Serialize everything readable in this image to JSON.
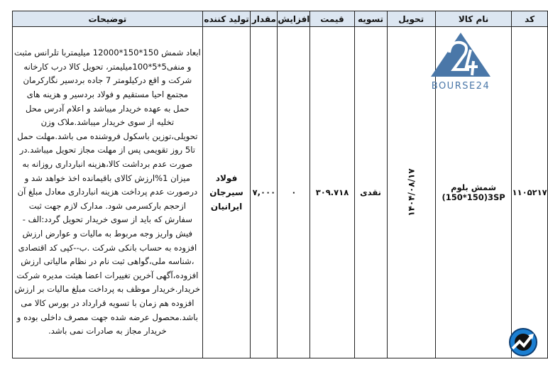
{
  "headers": {
    "code": "کد",
    "product": "نام کالا",
    "delivery": "تحویل",
    "settlement": "تسویه",
    "price": "قیمت",
    "increase": "افزایش",
    "quantity": "مقدار",
    "producer": "تولید کننده",
    "description": "توضیحات"
  },
  "row": {
    "code": "۱۱۰۵۲۱۷",
    "product_line1": "شمش بلوم",
    "product_line2": "(150*150)3SP",
    "delivery": "۱۴۰۴/۰۸/۱۷",
    "settlement": "نقدی",
    "price": "۳۰۹.۷۱۸",
    "increase": "۰",
    "quantity": "۷,۰۰۰",
    "producer_lines": [
      "فولاد",
      "سیرجان",
      "ایرانیان"
    ],
    "description_lines": [
      "ابعاد شمش 150*150*12000 میلیمتربا تلرانس مثبت",
      "و منفی5*5*100میلیمتر، تحویل کالا درب کارخانه",
      "شرکت و اقع درکیلومتر 7 جاده بردسیر نگارکرمان",
      "مجتمع احیا مستقیم و فولاد بردسیر و هزینه های",
      "حمل به عهده خریدار میباشد و اعلام آدرس محل",
      "تخلیه از سوی خریدار میباشد.ملاک وزن",
      "تحویلی،توزین باسکول فروشنده می باشد.مهلت حمل",
      "تا5 روز تقویمی پس از مهلت مجاز تحویل میباشد.در",
      "صورت عدم برداشت کالا،هزینه انبارداری روزانه به",
      "میزان 1%ارزش کالای باقیمانده اخذ خواهد شد و",
      "درصورت عدم پرداخت هزینه انبارداری معادل مبلغ آن",
      "ازحجم بارکسرمی شود. مدارک لازم جهت ثبت",
      "سفارش که باید از سوی خریدار تحویل گردد:الف -",
      "فیش واریز وجه مربوط به مالیات و عوارض ارزش",
      "افزوده به حساب بانکی شرکت .ب--کپی کد اقتصادی",
      "،شناسه ملی،گواهی ثبت نام در نظام مالیاتی ارزش",
      "افزوده،آگهی آخرین تغییرات اعضا هیئت مدیره شرکت",
      "خریدار.خریدار موظف به پرداخت مبلغ مالیات بر ارزش",
      "افزوده هم زمان با تسویه قرارداد در بورس کالا می",
      "باشد.محصول عرضه شده جهت مصرف داخلی بوده و",
      "خریدار مجاز به صادرات نمی باشد."
    ]
  },
  "logo": {
    "text": "BOURSE24",
    "color": "#4a77a8"
  },
  "badge_icon": "trend-chart-icon",
  "colors": {
    "header_bg": "#dce6f1",
    "border": "#222222"
  }
}
